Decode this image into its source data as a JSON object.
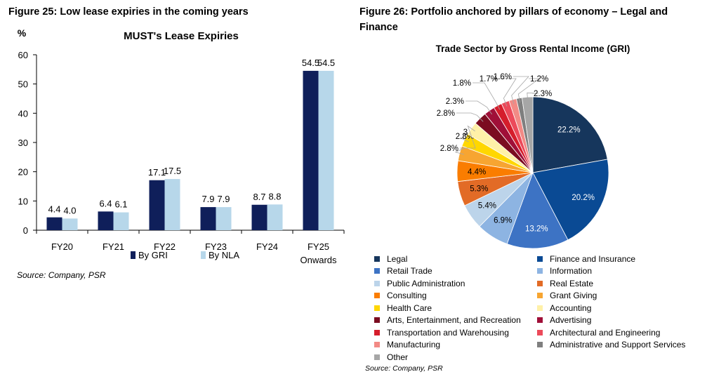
{
  "figures": {
    "fig25_title": "Figure 25: Low lease expiries in the coming years",
    "fig26_title": "Figure 26: Portfolio anchored by pillars of economy – Legal and Finance",
    "source_left": "Source: Company, PSR",
    "source_right": "Source: Company, PSR"
  },
  "chart_data": [
    {
      "type": "bar",
      "title": "MUST's Lease Expiries",
      "ylabel": "%",
      "categories": [
        "FY20",
        "FY21",
        "FY22",
        "FY23",
        "FY24",
        "FY25 Onwards"
      ],
      "ylim": [
        0,
        60
      ],
      "yticks": [
        0,
        10,
        20,
        30,
        40,
        50,
        60
      ],
      "series": [
        {
          "name": "By GRI",
          "color": "#0f1f5a",
          "values": [
            4.4,
            6.4,
            17.1,
            7.9,
            8.7,
            54.5
          ],
          "labels": [
            "4.4",
            "6.4",
            "17.1",
            "7.9",
            "8.7",
            "54.5"
          ]
        },
        {
          "name": "By NLA",
          "color": "#b7d7ea",
          "values": [
            4.0,
            6.1,
            17.5,
            7.9,
            8.8,
            54.5
          ],
          "labels": [
            "4.0",
            "6.1",
            "17.5",
            "7.9",
            "8.8",
            "54.5"
          ]
        }
      ],
      "grid": false,
      "legend": "bottom"
    },
    {
      "type": "pie",
      "title": "Trade Sector by Gross Rental Income (GRI)",
      "slices": [
        {
          "name": "Legal",
          "value": 22.2,
          "label": "22.2%",
          "color": "#16365c"
        },
        {
          "name": "Finance and Insurance",
          "value": 20.2,
          "label": "20.2%",
          "color": "#0a4a94"
        },
        {
          "name": "Retail Trade",
          "value": 13.2,
          "label": "13.2%",
          "color": "#3d73c4"
        },
        {
          "name": "Information",
          "value": 6.9,
          "label": "6.9%",
          "color": "#8db4e2"
        },
        {
          "name": "Public Administration",
          "value": 5.4,
          "label": "5.4%",
          "color": "#bcd4ea"
        },
        {
          "name": "Real Estate",
          "value": 5.3,
          "label": "5.3%",
          "color": "#e26b26"
        },
        {
          "name": "Consulting",
          "value": 4.4,
          "label": "4.4%",
          "color": "#fa7d00"
        },
        {
          "name": "Grant Giving",
          "value": 3.2,
          "label": "3.2%",
          "color": "#f7a531"
        },
        {
          "name": "Health Care",
          "value": 2.8,
          "label": "2.8%",
          "color": "#ffd700"
        },
        {
          "name": "Accounting",
          "value": 2.8,
          "label": "2.8%",
          "color": "#fff1a8"
        },
        {
          "name": "Arts, Entertainment, and Recreation",
          "value": 2.8,
          "label": "2.8%",
          "color": "#7b0c20"
        },
        {
          "name": "Advertising",
          "value": 2.3,
          "label": "2.3%",
          "color": "#a00f38"
        },
        {
          "name": "Transportation and Warehousing",
          "value": 1.8,
          "label": "1.8%",
          "color": "#d51d2b"
        },
        {
          "name": "Architectural and Engineering",
          "value": 1.7,
          "label": "1.7%",
          "color": "#ec4a5a"
        },
        {
          "name": "Manufacturing",
          "value": 1.6,
          "label": "1.6%",
          "color": "#f28a85"
        },
        {
          "name": "Administrative and Support Services",
          "value": 1.2,
          "label": "1.2%",
          "color": "#7f7f7f"
        },
        {
          "name": "Other",
          "value": 2.3,
          "label": "2.3%",
          "color": "#a6a6a6"
        }
      ],
      "legend": "bottom"
    }
  ]
}
